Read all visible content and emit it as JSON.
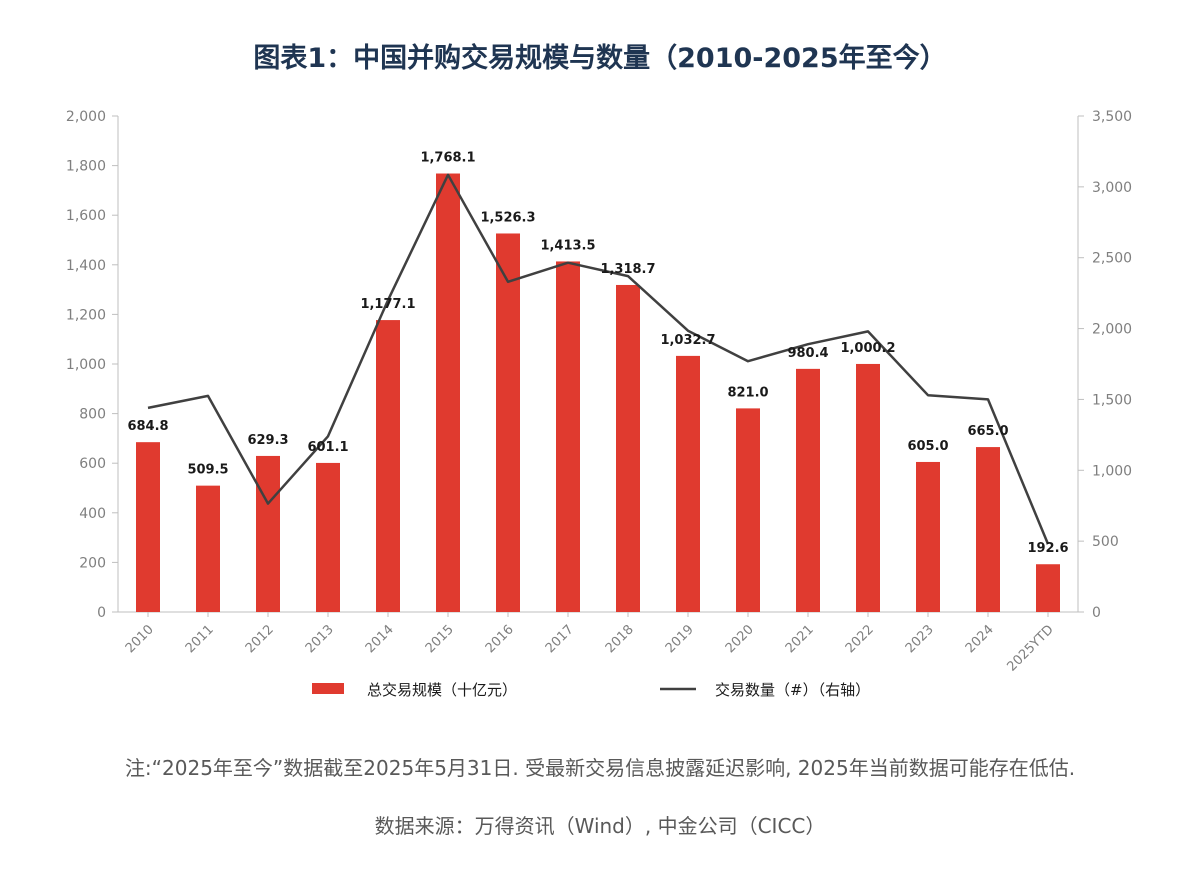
{
  "title": "图表1：中国并购交易规模与数量（2010-2025年至今）",
  "note": "注:“2025年至今”数据截至2025年5月31日. 受最新交易信息披露延迟影响, 2025年当前数据可能存在低估.",
  "source": "数据来源：万得资讯（Wind）, 中金公司（CICC）",
  "colors": {
    "bar": "#e03a2f",
    "line": "#404040",
    "axis": "#bfbfbf"
  },
  "chart_data": {
    "type": "bar",
    "categories": [
      "2010",
      "2011",
      "2012",
      "2013",
      "2014",
      "2015",
      "2016",
      "2017",
      "2018",
      "2019",
      "2020",
      "2021",
      "2022",
      "2023",
      "2024",
      "2025YTD"
    ],
    "series": [
      {
        "name": "总交易规模（十亿元）",
        "type": "bar",
        "axis": "left",
        "values": [
          684.8,
          509.5,
          629.3,
          601.1,
          1177.1,
          1768.1,
          1526.3,
          1413.5,
          1318.7,
          1032.7,
          821.0,
          980.4,
          1000.2,
          605.0,
          665.0,
          192.6
        ],
        "labels": [
          "684.8",
          "509.5",
          "629.3",
          "601.1",
          "1,177.1",
          "1,768.1",
          "1,526.3",
          "1,413.5",
          "1,318.7",
          "1,032.7",
          "821.0",
          "980.4",
          "1,000.2",
          "605.0",
          "665.0",
          "192.6"
        ]
      },
      {
        "name": "交易数量（#）（右轴）",
        "type": "line",
        "axis": "right",
        "values": [
          1440,
          1525,
          765,
          1240,
          2200,
          3085,
          2330,
          2465,
          2370,
          1985,
          1770,
          1890,
          1980,
          1530,
          1500,
          480
        ]
      }
    ],
    "y_left": {
      "lim": [
        0,
        2000
      ],
      "ticks": [
        "0",
        "200",
        "400",
        "600",
        "800",
        "1,000",
        "1,200",
        "1,400",
        "1,600",
        "1,800",
        "2,000"
      ]
    },
    "y_right": {
      "lim": [
        0,
        3500
      ],
      "ticks": [
        "0",
        "500",
        "1,000",
        "1,500",
        "2,000",
        "2,500",
        "3,000",
        "3,500"
      ]
    },
    "grid": false,
    "legend_position": "bottom"
  }
}
